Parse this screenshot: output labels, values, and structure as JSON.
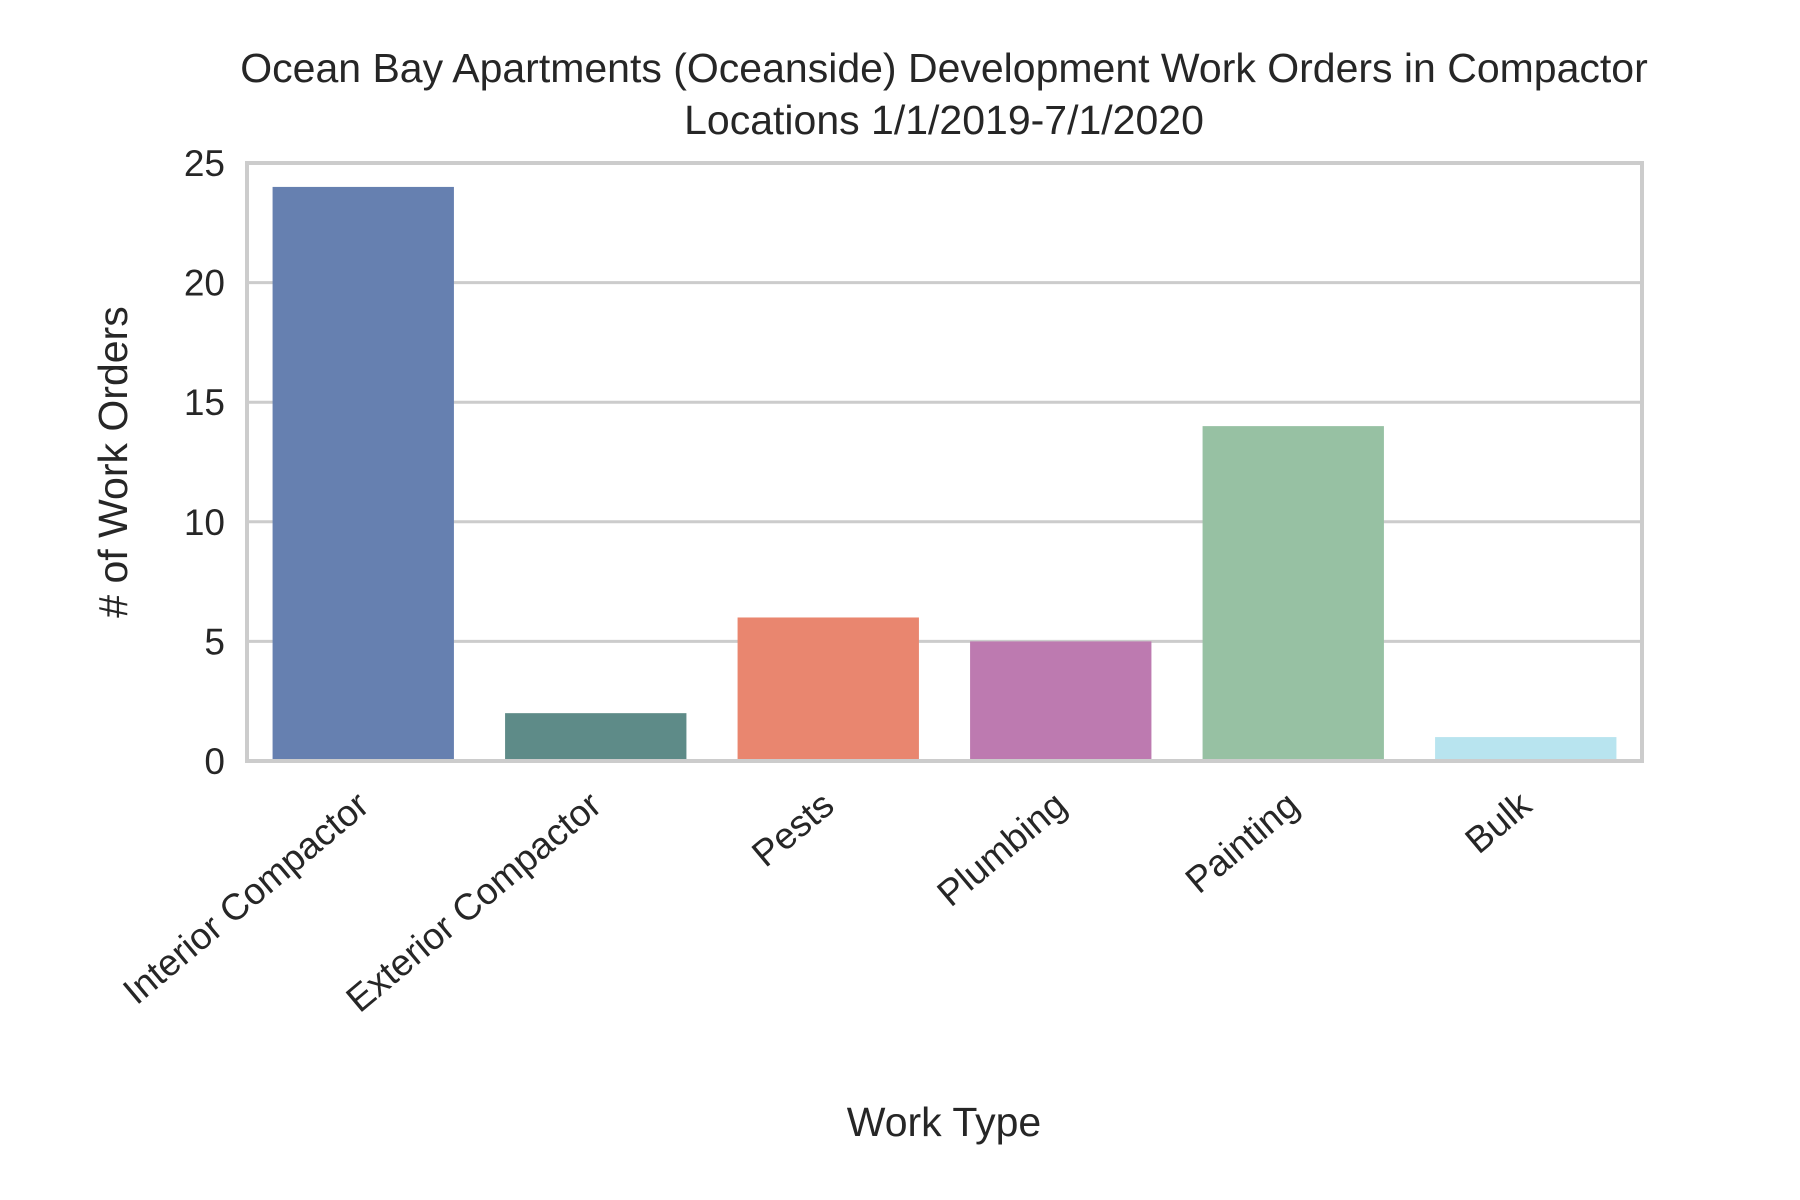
{
  "chart_data": {
    "type": "bar",
    "title_lines": [
      "Ocean Bay Apartments (Oceanside) Development Work Orders in Compactor",
      "Locations 1/1/2019-7/1/2020"
    ],
    "xlabel": "Work Type",
    "ylabel": "# of Work Orders",
    "categories": [
      "Interior Compactor",
      "Exterior Compactor",
      "Pests",
      "Plumbing",
      "Painting",
      "Bulk"
    ],
    "values": [
      24,
      2,
      6,
      5,
      14,
      1
    ],
    "colors": [
      "#6680b0",
      "#5e8b88",
      "#e9866f",
      "#bd7ab0",
      "#97c1a3",
      "#b8e4ef"
    ],
    "ylim": [
      0,
      25
    ],
    "yticks": [
      "0",
      "5",
      "10",
      "15",
      "20",
      "25"
    ],
    "grid": "horizontal",
    "legend": "none"
  }
}
